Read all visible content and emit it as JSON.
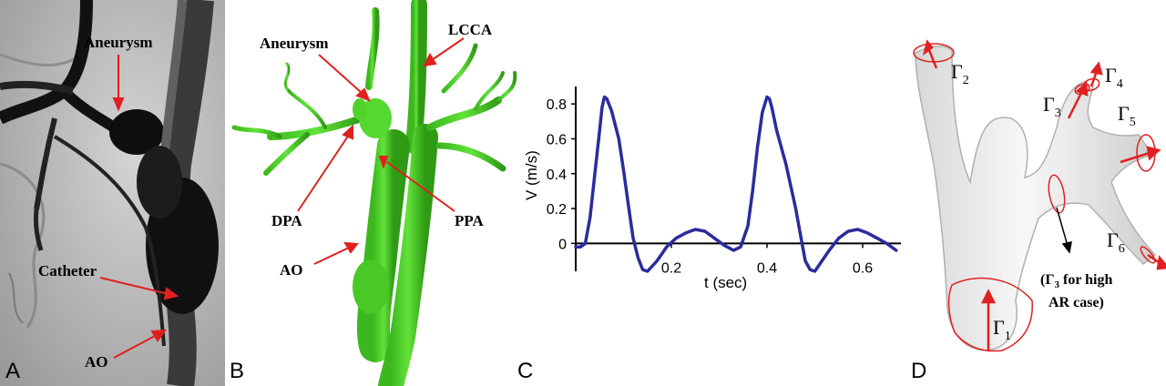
{
  "panel_a": {
    "letter": "A",
    "labels": {
      "aneurysm": "Aneurysm",
      "catheter": "Catheter",
      "ao": "AO"
    }
  },
  "panel_b": {
    "letter": "B",
    "labels": {
      "aneurysm": "Aneurysm",
      "lcca": "LCCA",
      "dpa": "DPA",
      "ppa": "PPA",
      "ao": "AO"
    }
  },
  "panel_c": {
    "letter": "C",
    "chart_data": {
      "type": "line",
      "xlabel": "t (sec)",
      "ylabel": "V (m/s)",
      "xlim": [
        0.0,
        0.68
      ],
      "ylim": [
        -0.16,
        0.9
      ],
      "xticks": [
        0.2,
        0.4,
        0.6
      ],
      "xtick_labels": [
        "0.2",
        "0.4",
        "0.6"
      ],
      "yticks": [
        0,
        0.2,
        0.4,
        0.6,
        0.8
      ],
      "ytick_labels": [
        "0",
        "0.2",
        "0.4",
        "0.6",
        "0.8"
      ],
      "line_color": "#2b2b9e",
      "series": [
        {
          "x": [
            0.0,
            0.01,
            0.02,
            0.03,
            0.04,
            0.05,
            0.055,
            0.06,
            0.065,
            0.075,
            0.09,
            0.1,
            0.11,
            0.12,
            0.13,
            0.14,
            0.15,
            0.17,
            0.19,
            0.21,
            0.23,
            0.25,
            0.27,
            0.29,
            0.31,
            0.33,
            0.345,
            0.36,
            0.37,
            0.38,
            0.39,
            0.4,
            0.405,
            0.41,
            0.42,
            0.44,
            0.46,
            0.47,
            0.48,
            0.49,
            0.5,
            0.51,
            0.53,
            0.55,
            0.57,
            0.59,
            0.61,
            0.63,
            0.65,
            0.67
          ],
          "y": [
            -0.02,
            -0.02,
            0.0,
            0.15,
            0.4,
            0.65,
            0.78,
            0.84,
            0.83,
            0.76,
            0.6,
            0.42,
            0.22,
            0.03,
            -0.08,
            -0.15,
            -0.16,
            -0.1,
            -0.02,
            0.03,
            0.06,
            0.08,
            0.07,
            0.03,
            -0.01,
            -0.04,
            -0.02,
            0.1,
            0.3,
            0.55,
            0.75,
            0.84,
            0.83,
            0.78,
            0.65,
            0.45,
            0.2,
            0.05,
            -0.1,
            -0.15,
            -0.16,
            -0.12,
            -0.04,
            0.03,
            0.07,
            0.08,
            0.06,
            0.03,
            0.0,
            -0.04
          ]
        }
      ]
    }
  },
  "panel_d": {
    "letter": "D",
    "labels": {
      "g1": "Γ",
      "g1_sub": "1",
      "g2": "Γ",
      "g2_sub": "2",
      "g3": "Γ",
      "g3_sub": "3",
      "g4": "Γ",
      "g4_sub": "4",
      "g5": "Γ",
      "g5_sub": "5",
      "g6": "Γ",
      "g6_sub": "6",
      "note_line1_a": "(Γ",
      "note_line1_sub": "3",
      "note_line1_b": " for high",
      "note_line2": "AR case)"
    }
  },
  "colors": {
    "arrow_red": "#e02020",
    "vessel_green": "#4fd22a",
    "vessel_green_dark": "#2f9a14",
    "angio_bg": "#b8b8b8",
    "angio_dark": "#1a1a1a",
    "model_gray": "#ececec"
  }
}
